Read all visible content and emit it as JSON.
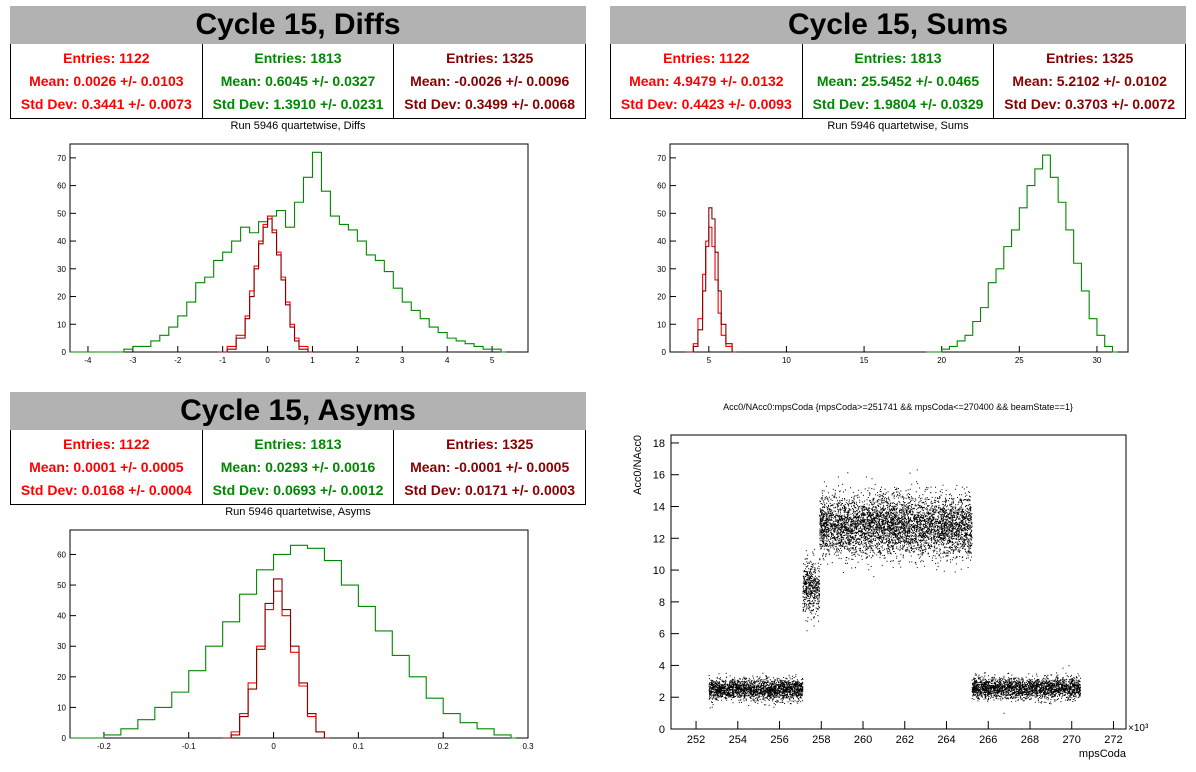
{
  "colors": {
    "s1": "#ff0000",
    "s2": "#008800",
    "s3": "#880000",
    "title_bg": "#b2b2b2"
  },
  "panels": {
    "diffs": {
      "title": "Cycle 15, Diffs",
      "subtitle": "Run 5946 quartetwise, Diffs",
      "stats": [
        {
          "entries": "Entries: 1122",
          "mean": "Mean: 0.0026 +/- 0.0103",
          "std": "Std Dev: 0.3441 +/- 0.0073"
        },
        {
          "entries": "Entries: 1813",
          "mean": "Mean: 0.6045 +/- 0.0327",
          "std": "Std Dev: 1.3910 +/- 0.0231"
        },
        {
          "entries": "Entries: 1325",
          "mean": "Mean: -0.0026 +/- 0.0096",
          "std": "Std Dev: 0.3499 +/- 0.0068"
        }
      ]
    },
    "sums": {
      "title": "Cycle 15, Sums",
      "subtitle": "Run 5946 quartetwise, Sums",
      "stats": [
        {
          "entries": "Entries: 1122",
          "mean": "Mean: 4.9479 +/- 0.0132",
          "std": "Std Dev: 0.4423 +/- 0.0093"
        },
        {
          "entries": "Entries: 1813",
          "mean": "Mean: 25.5452 +/- 0.0465",
          "std": "Std Dev: 1.9804 +/- 0.0329"
        },
        {
          "entries": "Entries: 1325",
          "mean": "Mean: 5.2102 +/- 0.0102",
          "std": "Std Dev: 0.3703 +/- 0.0072"
        }
      ]
    },
    "asyms": {
      "title": "Cycle 15, Asyms",
      "subtitle": "Run 5946 quartetwise, Asyms",
      "stats": [
        {
          "entries": "Entries: 1122",
          "mean": "Mean: 0.0001 +/- 0.0005",
          "std": "Std Dev: 0.0168 +/- 0.0004"
        },
        {
          "entries": "Entries: 1813",
          "mean": "Mean: 0.0293 +/- 0.0016",
          "std": "Std Dev: 0.0693 +/- 0.0012"
        },
        {
          "entries": "Entries: 1325",
          "mean": "Mean: -0.0001 +/- 0.0005",
          "std": "Std Dev: 0.0171 +/- 0.0003"
        }
      ]
    },
    "scatter": {
      "title": "Acc0/NAcc0:mpsCoda {mpsCoda>=251741 && mpsCoda<=270400 && beamState==1}"
    }
  },
  "chart_data": [
    {
      "type": "line",
      "id": "diffs",
      "xlim": [
        -4.4,
        5.8
      ],
      "ylim": [
        0,
        75
      ],
      "xticks": [
        -4,
        -3,
        -2,
        -1,
        0,
        1,
        2,
        3,
        4,
        5
      ],
      "yticks": [
        0,
        10,
        20,
        30,
        40,
        50,
        60,
        70
      ],
      "series": [
        {
          "color": "#008800",
          "step": true,
          "x": [
            -4.4,
            -3.2,
            -3.0,
            -2.8,
            -2.6,
            -2.4,
            -2.2,
            -2.0,
            -1.8,
            -1.6,
            -1.4,
            -1.2,
            -1.0,
            -0.8,
            -0.6,
            -0.4,
            -0.2,
            0.0,
            0.2,
            0.4,
            0.6,
            0.8,
            1.0,
            1.2,
            1.4,
            1.6,
            1.8,
            2.0,
            2.2,
            2.4,
            2.6,
            2.8,
            3.0,
            3.2,
            3.4,
            3.6,
            3.8,
            4.0,
            4.2,
            4.4,
            4.6,
            4.8,
            5.0,
            5.2
          ],
          "y": [
            0,
            1,
            2,
            2,
            4,
            6,
            9,
            13,
            18,
            25,
            27,
            33,
            36,
            40,
            45,
            43,
            47,
            49,
            51,
            45,
            54,
            63,
            72,
            58,
            49,
            46,
            44,
            40,
            35,
            33,
            29,
            23,
            18,
            15,
            12,
            9,
            7,
            5,
            4,
            3,
            2,
            1,
            1,
            0
          ]
        },
        {
          "color": "#ff0000",
          "step": true,
          "x": [
            -1.1,
            -0.9,
            -0.7,
            -0.5,
            -0.4,
            -0.3,
            -0.2,
            -0.1,
            0.0,
            0.1,
            0.2,
            0.3,
            0.4,
            0.5,
            0.6,
            0.7,
            0.9
          ],
          "y": [
            0,
            2,
            6,
            13,
            22,
            31,
            40,
            46,
            49,
            44,
            36,
            27,
            18,
            10,
            5,
            2,
            0
          ]
        },
        {
          "color": "#880000",
          "step": true,
          "x": [
            -1.1,
            -0.9,
            -0.7,
            -0.5,
            -0.4,
            -0.3,
            -0.2,
            -0.1,
            0.0,
            0.1,
            0.2,
            0.3,
            0.4,
            0.5,
            0.6,
            0.7,
            0.9
          ],
          "y": [
            0,
            1,
            5,
            12,
            20,
            30,
            39,
            45,
            48,
            43,
            35,
            26,
            17,
            9,
            4,
            1,
            0
          ]
        }
      ]
    },
    {
      "type": "line",
      "id": "sums",
      "xlim": [
        2.5,
        32
      ],
      "ylim": [
        0,
        75
      ],
      "xticks": [
        5,
        10,
        15,
        20,
        25,
        30
      ],
      "yticks": [
        0,
        10,
        20,
        30,
        40,
        50,
        60,
        70
      ],
      "series": [
        {
          "color": "#008800",
          "step": true,
          "x": [
            19.0,
            20.0,
            20.5,
            21.0,
            21.5,
            22.0,
            22.5,
            23.0,
            23.5,
            24.0,
            24.5,
            25.0,
            25.5,
            26.0,
            26.5,
            27.0,
            27.5,
            28.0,
            28.5,
            29.0,
            29.5,
            30.0,
            30.5,
            31.0
          ],
          "y": [
            0,
            1,
            2,
            4,
            6,
            11,
            16,
            25,
            30,
            38,
            44,
            52,
            60,
            66,
            71,
            63,
            54,
            44,
            32,
            22,
            12,
            6,
            2,
            0
          ]
        },
        {
          "color": "#ff0000",
          "step": true,
          "x": [
            3.5,
            4.0,
            4.3,
            4.6,
            4.8,
            5.0,
            5.2,
            5.4,
            5.6,
            5.8,
            6.1,
            6.5
          ],
          "y": [
            0,
            3,
            12,
            28,
            40,
            45,
            38,
            26,
            14,
            6,
            2,
            0
          ]
        },
        {
          "color": "#880000",
          "step": true,
          "x": [
            3.5,
            4.0,
            4.3,
            4.6,
            4.8,
            5.0,
            5.2,
            5.4,
            5.6,
            5.8,
            6.1,
            6.5
          ],
          "y": [
            0,
            2,
            8,
            22,
            38,
            52,
            48,
            36,
            22,
            10,
            3,
            0
          ]
        }
      ]
    },
    {
      "type": "line",
      "id": "asyms",
      "xlim": [
        -0.24,
        0.3
      ],
      "ylim": [
        0,
        68
      ],
      "xticks": [
        -0.2,
        -0.1,
        0,
        0.1,
        0.2,
        0.3
      ],
      "yticks": [
        0,
        10,
        20,
        30,
        40,
        50,
        60
      ],
      "series": [
        {
          "color": "#008800",
          "step": true,
          "x": [
            -0.24,
            -0.2,
            -0.18,
            -0.16,
            -0.14,
            -0.12,
            -0.1,
            -0.08,
            -0.06,
            -0.04,
            -0.02,
            0.0,
            0.02,
            0.04,
            0.06,
            0.08,
            0.1,
            0.12,
            0.14,
            0.16,
            0.18,
            0.2,
            0.22,
            0.24,
            0.26,
            0.28
          ],
          "y": [
            0,
            1,
            3,
            6,
            10,
            15,
            22,
            30,
            38,
            47,
            55,
            60,
            63,
            62,
            58,
            50,
            43,
            35,
            27,
            20,
            13,
            8,
            5,
            3,
            1,
            0
          ]
        },
        {
          "color": "#ff0000",
          "step": true,
          "x": [
            -0.06,
            -0.05,
            -0.04,
            -0.03,
            -0.02,
            -0.01,
            0.0,
            0.01,
            0.02,
            0.03,
            0.04,
            0.05,
            0.06
          ],
          "y": [
            0,
            2,
            8,
            18,
            30,
            42,
            48,
            40,
            28,
            17,
            7,
            2,
            0
          ]
        },
        {
          "color": "#880000",
          "step": true,
          "x": [
            -0.06,
            -0.05,
            -0.04,
            -0.03,
            -0.02,
            -0.01,
            0.0,
            0.01,
            0.02,
            0.03,
            0.04,
            0.05,
            0.06
          ],
          "y": [
            0,
            1,
            7,
            16,
            29,
            44,
            52,
            42,
            30,
            18,
            8,
            2,
            0
          ]
        }
      ]
    },
    {
      "type": "scatter",
      "id": "scatter",
      "xlabel": "mpsCoda",
      "ylabel": "Acc0/NAcc0",
      "xlim": [
        250.8,
        272.6
      ],
      "ylim": [
        0,
        18.5
      ],
      "xticks": [
        252,
        254,
        256,
        258,
        260,
        262,
        264,
        266,
        268,
        270,
        272
      ],
      "yticks": [
        0,
        2,
        4,
        6,
        8,
        10,
        12,
        14,
        16,
        18
      ],
      "x_multiplier": "×10³",
      "clusters": [
        {
          "x_range": [
            252.6,
            257.1
          ],
          "y_center": 2.5,
          "y_spread": 0.6,
          "n": 2200
        },
        {
          "x_range": [
            257.1,
            257.9
          ],
          "y_center": 9.0,
          "y_spread": 1.5,
          "n": 500
        },
        {
          "x_range": [
            257.9,
            265.2
          ],
          "y_center": 12.8,
          "y_spread": 1.7,
          "n": 5000
        },
        {
          "x_range": [
            265.2,
            270.4
          ],
          "y_center": 2.6,
          "y_spread": 0.6,
          "n": 2400
        }
      ]
    }
  ]
}
